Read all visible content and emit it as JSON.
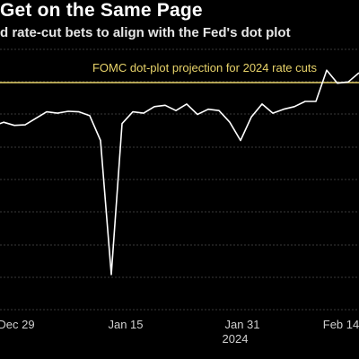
{
  "header": {
    "title": "Get on the Same Page",
    "subtitle": "d rate-cut bets to align with the Fed's dot plot"
  },
  "colors": {
    "background": "#000000",
    "line": "#ffffff",
    "reference_line": "#e8d36a",
    "grid": "#3a3a3a"
  },
  "chart_data": {
    "type": "line",
    "title": "Get on the Same Page",
    "subtitle": "d rate-cut bets to align with the Fed's dot plot",
    "xlabel": "",
    "ylabel": "",
    "x_tick_labels": [
      "Dec 29",
      "Jan 15",
      "Jan 31",
      "Feb 14"
    ],
    "x_secondary_label": "2024",
    "reference_line": {
      "label": "FOMC dot-plot projection for 2024 rate cuts"
    },
    "grid": true,
    "legend": "none",
    "series": [
      {
        "values": [
          0.705,
          0.72,
          0.708,
          0.71,
          0.735,
          0.76,
          0.755,
          0.762,
          0.76,
          0.745,
          0.65,
          0.135,
          0.715,
          0.76,
          0.755,
          0.78,
          0.785,
          0.765,
          0.79,
          0.75,
          0.77,
          0.765,
          0.72,
          0.65,
          0.74,
          0.79,
          0.755,
          0.77,
          0.78,
          0.8,
          0.8,
          0.92,
          0.87,
          0.875,
          0.91
        ]
      }
    ]
  }
}
